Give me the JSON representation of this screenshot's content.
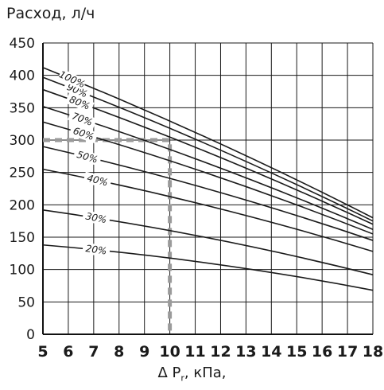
{
  "chart_data": {
    "type": "line",
    "ylabel": "Расход, л/ч",
    "xlabel_parts": {
      "symbol": "Δ P",
      "subscript": "r",
      "rest": ", кПа,"
    },
    "xlim": [
      5,
      18
    ],
    "ylim": [
      0,
      450
    ],
    "x_ticks": [
      5,
      6,
      7,
      8,
      9,
      10,
      11,
      12,
      13,
      14,
      15,
      16,
      17,
      18
    ],
    "y_ticks": [
      0,
      50,
      100,
      150,
      200,
      250,
      300,
      350,
      400,
      450
    ],
    "grid": true,
    "series": [
      {
        "name": "20%",
        "points": [
          [
            5,
            138
          ],
          [
            18,
            68
          ]
        ]
      },
      {
        "name": "30%",
        "points": [
          [
            5,
            192
          ],
          [
            18,
            92
          ]
        ]
      },
      {
        "name": "40%",
        "points": [
          [
            5,
            255
          ],
          [
            18,
            128
          ]
        ]
      },
      {
        "name": "50%",
        "points": [
          [
            5,
            290
          ],
          [
            18,
            145
          ]
        ]
      },
      {
        "name": "60%",
        "points": [
          [
            5,
            328
          ],
          [
            18,
            155
          ]
        ]
      },
      {
        "name": "70%",
        "points": [
          [
            5,
            352
          ],
          [
            18,
            162
          ]
        ]
      },
      {
        "name": "80%",
        "points": [
          [
            5,
            378
          ],
          [
            18,
            170
          ]
        ]
      },
      {
        "name": "90%",
        "points": [
          [
            5,
            397
          ],
          [
            18,
            175
          ]
        ]
      },
      {
        "name": "100%",
        "points": [
          [
            5,
            412
          ],
          [
            18,
            180
          ]
        ]
      }
    ],
    "series_label_at_x": [
      7.1,
      7.1,
      7.15,
      6.75,
      6.6,
      6.55,
      6.45,
      6.35,
      6.15
    ],
    "reference_point": {
      "x": 10,
      "y": 300
    }
  }
}
